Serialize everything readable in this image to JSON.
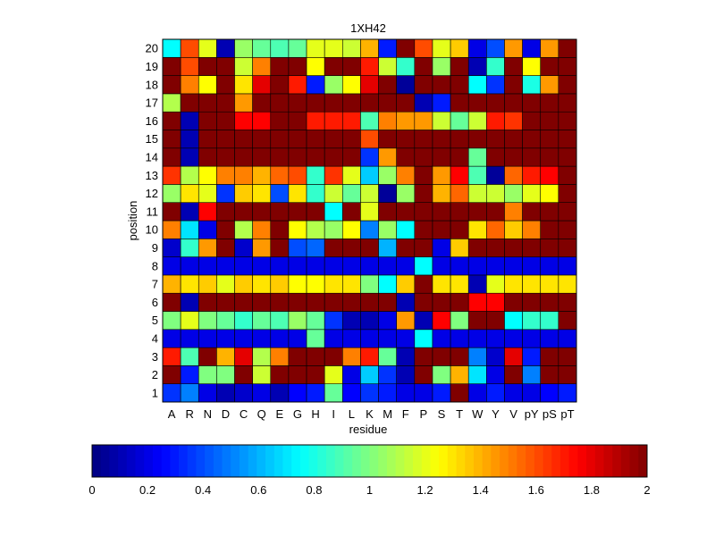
{
  "chart_data": {
    "type": "heatmap",
    "title": "1XH42",
    "xlabel": "residue",
    "ylabel": "position",
    "x_categories": [
      "A",
      "R",
      "N",
      "D",
      "C",
      "Q",
      "E",
      "G",
      "H",
      "I",
      "L",
      "K",
      "M",
      "F",
      "P",
      "S",
      "T",
      "W",
      "Y",
      "V",
      "pY",
      "pS",
      "pT"
    ],
    "y_categories": [
      "1",
      "2",
      "3",
      "4",
      "5",
      "6",
      "7",
      "8",
      "9",
      "10",
      "11",
      "12",
      "13",
      "14",
      "15",
      "16",
      "17",
      "18",
      "19",
      "20"
    ],
    "value_range": [
      0,
      2
    ],
    "colormap": "jet",
    "colorbar": {
      "ticks": [
        "0",
        "0.2",
        "0.4",
        "0.6",
        "0.8",
        "1",
        "1.2",
        "1.4",
        "1.6",
        "1.8",
        "2"
      ],
      "placement": "bottom"
    },
    "rows_note": "values[i] corresponds to position i+1; columns follow x_categories",
    "values": [
      [
        0.35,
        0.5,
        0.2,
        0.1,
        0.15,
        0.2,
        0.1,
        0.25,
        0.3,
        0.95,
        0.25,
        0.35,
        0.3,
        0.2,
        0.2,
        0.3,
        2.0,
        0.2,
        0.3,
        0.2,
        0.2,
        0.25,
        0.3
      ],
      [
        2.0,
        0.3,
        1.0,
        1.0,
        2.0,
        1.15,
        2.0,
        2.0,
        2.0,
        1.2,
        0.2,
        0.65,
        0.35,
        0.1,
        2.0,
        1.0,
        1.4,
        0.7,
        0.2,
        2.0,
        0.5,
        2.0,
        2.0
      ],
      [
        1.7,
        0.9,
        2.0,
        1.4,
        1.8,
        1.1,
        1.5,
        2.0,
        2.0,
        2.0,
        1.5,
        1.7,
        0.95,
        0.1,
        2.0,
        2.0,
        2.0,
        0.5,
        0.15,
        1.8,
        0.3,
        2.0,
        2.0
      ],
      [
        0.2,
        0.2,
        0.2,
        0.2,
        0.2,
        0.2,
        0.2,
        0.2,
        0.95,
        0.2,
        0.2,
        0.2,
        0.2,
        0.2,
        0.75,
        0.2,
        0.2,
        0.2,
        0.2,
        0.2,
        0.2,
        0.2,
        0.2
      ],
      [
        1.0,
        1.2,
        1.0,
        0.95,
        0.85,
        0.95,
        0.9,
        1.05,
        0.95,
        0.35,
        0.1,
        0.1,
        0.2,
        1.45,
        0.1,
        1.75,
        1.0,
        2.0,
        2.0,
        0.75,
        0.85,
        0.85,
        2.0
      ],
      [
        2.0,
        0.1,
        2.0,
        2.0,
        2.0,
        2.0,
        2.0,
        2.0,
        2.0,
        2.0,
        2.0,
        2.0,
        2.0,
        0.1,
        2.0,
        2.0,
        2.0,
        1.75,
        1.75,
        2.0,
        2.0,
        2.0,
        2.0
      ],
      [
        1.4,
        1.3,
        1.35,
        1.2,
        1.35,
        1.3,
        1.35,
        1.25,
        1.25,
        1.3,
        1.3,
        1.0,
        0.75,
        1.35,
        2.0,
        1.3,
        1.3,
        0.1,
        1.2,
        1.3,
        1.3,
        1.3,
        1.3
      ],
      [
        0.2,
        0.2,
        0.2,
        0.2,
        0.2,
        0.2,
        0.2,
        0.2,
        0.2,
        0.2,
        0.2,
        0.2,
        0.2,
        0.2,
        0.75,
        0.2,
        0.2,
        0.2,
        0.2,
        0.2,
        0.2,
        0.2,
        0.2
      ],
      [
        0.15,
        0.85,
        1.45,
        2.0,
        0.15,
        1.45,
        2.0,
        0.4,
        0.45,
        2.0,
        2.0,
        2.0,
        0.6,
        2.0,
        2.0,
        0.2,
        1.35,
        2.0,
        2.0,
        2.0,
        2.0,
        2.0,
        2.0
      ],
      [
        1.5,
        0.7,
        0.2,
        2.0,
        1.1,
        1.5,
        2.0,
        1.25,
        1.1,
        1.05,
        1.25,
        0.5,
        1.05,
        0.75,
        2.0,
        2.0,
        2.0,
        1.3,
        1.55,
        1.35,
        1.5,
        2.0,
        2.0
      ],
      [
        2.0,
        0.1,
        1.75,
        2.0,
        2.0,
        2.0,
        2.0,
        2.0,
        2.0,
        0.75,
        2.0,
        1.2,
        2.0,
        2.0,
        2.0,
        2.0,
        2.0,
        2.0,
        2.0,
        1.5,
        2.0,
        2.0,
        2.0
      ],
      [
        1.05,
        1.3,
        1.2,
        0.35,
        1.35,
        1.3,
        0.4,
        1.3,
        0.85,
        1.15,
        0.95,
        1.15,
        0.05,
        1.05,
        2.0,
        1.4,
        1.55,
        1.15,
        1.15,
        1.05,
        1.2,
        1.25,
        2.0
      ],
      [
        1.65,
        1.1,
        1.25,
        1.5,
        1.5,
        1.4,
        1.55,
        1.6,
        0.85,
        1.65,
        1.2,
        0.65,
        1.05,
        1.5,
        2.0,
        1.45,
        1.75,
        0.9,
        0.05,
        1.55,
        1.7,
        1.75,
        2.0
      ],
      [
        2.0,
        0.1,
        2.0,
        2.0,
        2.0,
        2.0,
        2.0,
        2.0,
        2.0,
        2.0,
        2.0,
        0.35,
        1.45,
        2.0,
        2.0,
        2.0,
        2.0,
        0.95,
        2.0,
        2.0,
        2.0,
        2.0,
        2.0
      ],
      [
        2.0,
        0.1,
        2.0,
        2.0,
        2.0,
        2.0,
        2.0,
        2.0,
        2.0,
        2.0,
        2.0,
        1.6,
        2.0,
        2.0,
        2.0,
        2.0,
        2.0,
        2.0,
        2.0,
        2.0,
        2.0,
        2.0,
        2.0
      ],
      [
        2.0,
        0.1,
        2.0,
        2.0,
        1.75,
        1.75,
        2.0,
        2.0,
        1.7,
        1.7,
        1.7,
        0.9,
        1.5,
        1.45,
        1.45,
        1.15,
        0.95,
        1.15,
        1.7,
        1.65,
        2.0,
        2.0,
        2.0
      ],
      [
        1.1,
        2.0,
        2.0,
        2.0,
        1.45,
        2.0,
        2.0,
        2.0,
        2.0,
        2.0,
        2.0,
        2.0,
        2.0,
        2.0,
        0.1,
        0.3,
        2.0,
        2.0,
        2.0,
        2.0,
        2.0,
        2.0,
        2.0
      ],
      [
        2.0,
        1.5,
        1.25,
        2.0,
        1.3,
        1.8,
        2.0,
        1.7,
        0.3,
        1.05,
        1.25,
        1.8,
        2.0,
        0.05,
        2.0,
        2.0,
        2.0,
        0.75,
        0.35,
        2.0,
        0.8,
        1.45,
        2.0
      ],
      [
        2.0,
        1.6,
        2.0,
        2.0,
        1.15,
        1.5,
        2.0,
        2.0,
        1.25,
        2.0,
        2.0,
        1.7,
        1.15,
        0.85,
        2.0,
        1.05,
        2.0,
        0.1,
        0.85,
        2.0,
        1.25,
        2.0,
        2.0
      ],
      [
        0.75,
        1.6,
        1.2,
        0.1,
        1.05,
        0.95,
        0.9,
        0.95,
        1.2,
        1.2,
        1.15,
        1.4,
        0.3,
        2.0,
        1.6,
        1.2,
        1.35,
        0.2,
        0.4,
        1.45,
        0.2,
        1.45,
        2.0
      ]
    ]
  }
}
